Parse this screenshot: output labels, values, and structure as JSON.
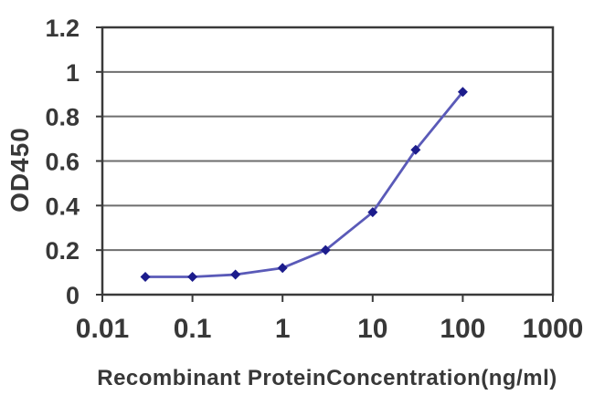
{
  "chart_data": {
    "type": "line",
    "x_scale": "log",
    "x": [
      0.03,
      0.1,
      0.3,
      1,
      3,
      10,
      30,
      100
    ],
    "y": [
      0.08,
      0.08,
      0.09,
      0.12,
      0.2,
      0.37,
      0.65,
      0.91
    ],
    "xlabel": "Recombinant ProteinConcentration(ng/ml)",
    "ylabel": "OD450",
    "xlim": [
      0.01,
      1000
    ],
    "ylim": [
      0,
      1.2
    ],
    "x_ticks": [
      "0.01",
      "0.1",
      "1",
      "10",
      "100",
      "1000"
    ],
    "y_ticks": [
      "0",
      "0.2",
      "0.4",
      "0.6",
      "0.8",
      "1",
      "1.2"
    ],
    "grid": "horizontal",
    "legend": "none",
    "marker": "diamond",
    "colors": {
      "line": "#5a5ab8",
      "marker": "#1c1c8c",
      "grid": "#6e6e6e",
      "border": "#3a3a3a",
      "text": "#383838",
      "background": "#ffffff"
    }
  }
}
